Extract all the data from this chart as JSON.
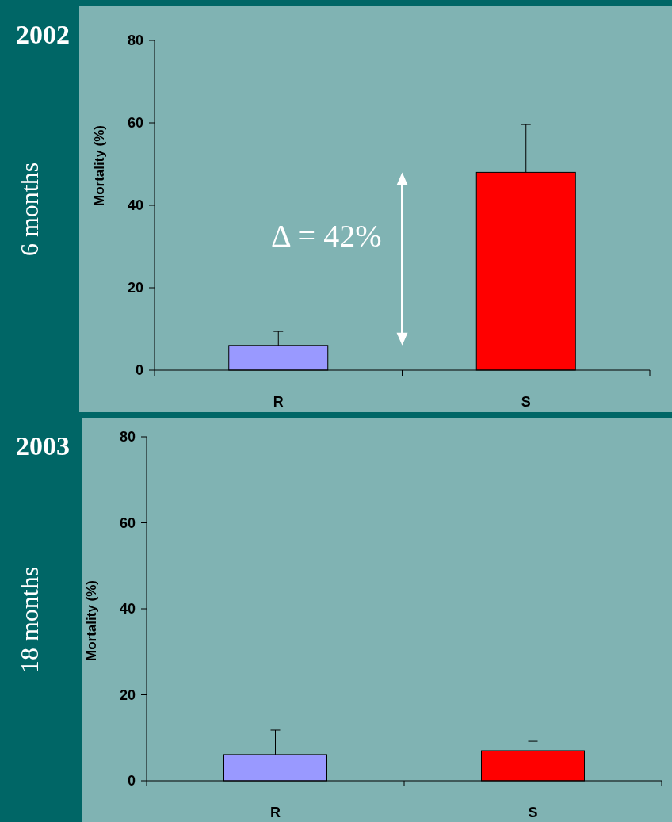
{
  "chart_data": [
    {
      "type": "bar",
      "title": "2002",
      "subtitle": "6 months",
      "ylabel": "Mortality (%)",
      "categories": [
        "R",
        "S"
      ],
      "values": [
        6,
        48
      ],
      "colors": [
        "#9999ff",
        "#ff0000"
      ],
      "errors": [
        [
          6,
          9.4
        ],
        [
          48,
          59.6
        ]
      ],
      "ylim": [
        0,
        80
      ],
      "yticks": [
        0,
        20,
        40,
        60,
        80
      ],
      "grid": false,
      "annotations": [
        "Δ = 42%"
      ]
    },
    {
      "type": "bar",
      "title": "2003",
      "subtitle": "18 months",
      "ylabel": "Mortality (%)",
      "categories": [
        "R",
        "S"
      ],
      "values": [
        6.1,
        7
      ],
      "colors": [
        "#9999ff",
        "#ff0000"
      ],
      "errors": [
        [
          6.1,
          11.8
        ],
        [
          7,
          9.2
        ]
      ],
      "ylim": [
        0,
        80
      ],
      "yticks": [
        0,
        20,
        40,
        60,
        80
      ],
      "grid": false
    }
  ]
}
